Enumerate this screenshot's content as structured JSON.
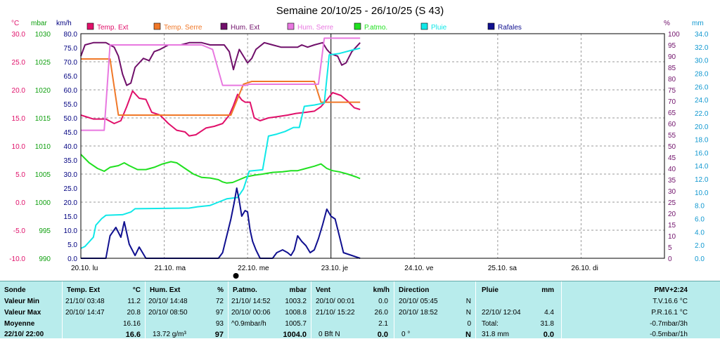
{
  "colors": {
    "temp_ext": "#e0106a",
    "temp_serre": "#f07828",
    "hum_ext": "#70106a",
    "hum_serre": "#e878e0",
    "patmo": "#20e020",
    "pluie": "#10e8e8",
    "rafales": "#101090",
    "unit_c": "#e0106a",
    "unit_mbar": "#10a010",
    "unit_kmh": "#000080",
    "unit_pct": "#70106a",
    "unit_mm": "#1098d0",
    "table_bg": "#b8ecec"
  },
  "chart_data": {
    "type": "line",
    "title": "Semaine 20/10/25 - 26/10/25 (S 43)",
    "axes": {
      "temp_c": {
        "unit": "°C",
        "range": [
          -10,
          30
        ],
        "ticks": [
          "30.0",
          "25.0",
          "20.0",
          "15.0",
          "10.0",
          "5.0",
          "0.0",
          "-5.0",
          "-10.0"
        ]
      },
      "pressure_mbar": {
        "unit": "mbar",
        "range": [
          990,
          1030
        ],
        "ticks": [
          "1030",
          "1025",
          "1020",
          "1015",
          "1010",
          "1005",
          "1000",
          "995",
          "990"
        ]
      },
      "wind_kmh": {
        "unit": "km/h",
        "range": [
          0,
          80
        ],
        "ticks": [
          "80.0",
          "75.0",
          "70.0",
          "65.0",
          "60.0",
          "55.0",
          "50.0",
          "45.0",
          "40.0",
          "35.0",
          "30.0",
          "25.0",
          "20.0",
          "15.0",
          "10.0",
          "5.0",
          "0.0"
        ]
      },
      "hum_pct": {
        "unit": "%",
        "range": [
          0,
          100
        ],
        "ticks": [
          "100",
          "95",
          "90",
          "85",
          "80",
          "75",
          "70",
          "65",
          "60",
          "55",
          "50",
          "45",
          "40",
          "35",
          "30",
          "25",
          "20",
          "15",
          "10",
          "5",
          "0"
        ]
      },
      "rain_mm": {
        "unit": "mm",
        "range": [
          0,
          34
        ],
        "ticks": [
          "34.0",
          "32.0",
          "30.0",
          "28.0",
          "26.0",
          "24.0",
          "22.0",
          "20.0",
          "18.0",
          "16.0",
          "14.0",
          "12.0",
          "10.0",
          "8.0",
          "6.0",
          "4.0",
          "2.0",
          "0.0"
        ]
      }
    },
    "x_range_days": [
      0,
      7
    ],
    "days": [
      "20.10.  lu",
      "21.10.  ma",
      "22.10.  me",
      "23.10.  je",
      "24.10.  ve",
      "25.10.  sa",
      "26.10.  di"
    ],
    "grid": true,
    "legend_position": "top",
    "series": [
      {
        "key": "temp_ext",
        "name": "Temp. Ext",
        "axis": "temp_c",
        "points": [
          [
            0,
            15.5
          ],
          [
            0.15,
            14.8
          ],
          [
            0.3,
            14.8
          ],
          [
            0.4,
            14.0
          ],
          [
            0.48,
            14.5
          ],
          [
            0.55,
            17.0
          ],
          [
            0.62,
            19.8
          ],
          [
            0.7,
            18.5
          ],
          [
            0.78,
            18.3
          ],
          [
            0.85,
            16.0
          ],
          [
            0.95,
            15.5
          ],
          [
            1.05,
            14.0
          ],
          [
            1.15,
            12.8
          ],
          [
            1.25,
            12.5
          ],
          [
            1.3,
            11.8
          ],
          [
            1.38,
            12.0
          ],
          [
            1.5,
            13.2
          ],
          [
            1.6,
            13.5
          ],
          [
            1.7,
            14.0
          ],
          [
            1.78,
            15.5
          ],
          [
            1.83,
            17.2
          ],
          [
            1.88,
            19.2
          ],
          [
            1.93,
            18.2
          ],
          [
            1.97,
            17.8
          ],
          [
            2.03,
            17.8
          ],
          [
            2.08,
            15.0
          ],
          [
            2.15,
            14.5
          ],
          [
            2.25,
            15.0
          ],
          [
            2.35,
            15.2
          ],
          [
            2.48,
            15.5
          ],
          [
            2.58,
            15.8
          ],
          [
            2.7,
            16.0
          ],
          [
            2.8,
            16.2
          ],
          [
            2.88,
            17.0
          ],
          [
            2.95,
            18.2
          ],
          [
            3.02,
            19.5
          ],
          [
            3.12,
            19.0
          ],
          [
            3.2,
            18.0
          ],
          [
            3.28,
            16.8
          ],
          [
            3.35,
            16.5
          ]
        ]
      },
      {
        "key": "temp_serre",
        "name": "Temp. Serre",
        "axis": "temp_c",
        "points": [
          [
            0,
            25.5
          ],
          [
            0.35,
            25.5
          ],
          [
            0.45,
            15.5
          ],
          [
            0.6,
            15.5
          ],
          [
            1.8,
            15.5
          ],
          [
            1.95,
            21.0
          ],
          [
            2.05,
            21.5
          ],
          [
            2.8,
            21.5
          ],
          [
            2.88,
            17.8
          ],
          [
            3.35,
            17.8
          ]
        ]
      },
      {
        "key": "hum_ext",
        "name": "Hum. Ext",
        "axis": "hum_pct",
        "points": [
          [
            0,
            90
          ],
          [
            0.05,
            95
          ],
          [
            0.15,
            96
          ],
          [
            0.3,
            96
          ],
          [
            0.4,
            94
          ],
          [
            0.45,
            90
          ],
          [
            0.5,
            82
          ],
          [
            0.55,
            77
          ],
          [
            0.6,
            78
          ],
          [
            0.65,
            85
          ],
          [
            0.7,
            87
          ],
          [
            0.75,
            89
          ],
          [
            0.82,
            88
          ],
          [
            0.88,
            92
          ],
          [
            0.95,
            93
          ],
          [
            1.05,
            95
          ],
          [
            1.2,
            95
          ],
          [
            1.3,
            96
          ],
          [
            1.45,
            96
          ],
          [
            1.55,
            95
          ],
          [
            1.65,
            95
          ],
          [
            1.72,
            95
          ],
          [
            1.78,
            92
          ],
          [
            1.83,
            84
          ],
          [
            1.86,
            88
          ],
          [
            1.9,
            93
          ],
          [
            1.95,
            90
          ],
          [
            2.0,
            87
          ],
          [
            2.05,
            89
          ],
          [
            2.1,
            93
          ],
          [
            2.2,
            96
          ],
          [
            2.3,
            95
          ],
          [
            2.4,
            94
          ],
          [
            2.5,
            94
          ],
          [
            2.6,
            94
          ],
          [
            2.65,
            95
          ],
          [
            2.72,
            94
          ],
          [
            2.8,
            95
          ],
          [
            2.9,
            96
          ],
          [
            2.95,
            93
          ],
          [
            3.0,
            91
          ],
          [
            3.08,
            90
          ],
          [
            3.13,
            86
          ],
          [
            3.18,
            87
          ],
          [
            3.25,
            92
          ],
          [
            3.3,
            94
          ],
          [
            3.35,
            96
          ]
        ]
      },
      {
        "key": "hum_serre",
        "name": "Hum. Serre",
        "axis": "hum_pct",
        "points": [
          [
            0,
            57
          ],
          [
            0.28,
            57
          ],
          [
            0.35,
            95
          ],
          [
            1.38,
            95
          ],
          [
            1.45,
            95
          ],
          [
            1.58,
            93
          ],
          [
            1.7,
            77
          ],
          [
            1.98,
            77
          ],
          [
            2.02,
            77.5
          ],
          [
            2.85,
            77.5
          ],
          [
            2.92,
            98
          ],
          [
            3.35,
            98
          ]
        ]
      },
      {
        "key": "patmo",
        "name": "P.atmo.",
        "axis": "pressure_mbar",
        "points": [
          [
            0,
            1008.5
          ],
          [
            0.1,
            1007.0
          ],
          [
            0.2,
            1006.0
          ],
          [
            0.28,
            1005.5
          ],
          [
            0.35,
            1006.2
          ],
          [
            0.45,
            1006.5
          ],
          [
            0.52,
            1007.0
          ],
          [
            0.58,
            1006.5
          ],
          [
            0.68,
            1005.8
          ],
          [
            0.78,
            1005.8
          ],
          [
            0.88,
            1006.2
          ],
          [
            0.98,
            1006.8
          ],
          [
            1.08,
            1007.2
          ],
          [
            1.15,
            1007.0
          ],
          [
            1.25,
            1006.0
          ],
          [
            1.35,
            1005.0
          ],
          [
            1.45,
            1004.4
          ],
          [
            1.55,
            1004.3
          ],
          [
            1.65,
            1004.0
          ],
          [
            1.7,
            1003.6
          ],
          [
            1.75,
            1003.4
          ],
          [
            1.82,
            1003.5
          ],
          [
            1.9,
            1004.0
          ],
          [
            1.98,
            1004.5
          ],
          [
            2.08,
            1004.8
          ],
          [
            2.18,
            1005.0
          ],
          [
            2.3,
            1005.3
          ],
          [
            2.42,
            1005.4
          ],
          [
            2.52,
            1005.6
          ],
          [
            2.6,
            1005.6
          ],
          [
            2.7,
            1006.0
          ],
          [
            2.8,
            1006.4
          ],
          [
            2.88,
            1006.8
          ],
          [
            2.95,
            1006.0
          ],
          [
            3.02,
            1005.6
          ],
          [
            3.1,
            1005.4
          ],
          [
            3.2,
            1005.0
          ],
          [
            3.3,
            1004.5
          ],
          [
            3.35,
            1004.2
          ]
        ]
      },
      {
        "key": "pluie",
        "name": "Pluie",
        "axis": "rain_mm",
        "points": [
          [
            0,
            1.5
          ],
          [
            0.05,
            1.8
          ],
          [
            0.1,
            2.5
          ],
          [
            0.15,
            3.2
          ],
          [
            0.18,
            5.0
          ],
          [
            0.25,
            6.0
          ],
          [
            0.3,
            6.5
          ],
          [
            0.5,
            6.6
          ],
          [
            0.6,
            7.0
          ],
          [
            0.65,
            7.5
          ],
          [
            1.3,
            7.6
          ],
          [
            1.4,
            7.8
          ],
          [
            1.55,
            8.0
          ],
          [
            1.65,
            8.5
          ],
          [
            1.75,
            9.0
          ],
          [
            1.88,
            9.2
          ],
          [
            1.95,
            10.5
          ],
          [
            2.02,
            13.2
          ],
          [
            2.18,
            13.4
          ],
          [
            2.25,
            18.5
          ],
          [
            2.35,
            18.8
          ],
          [
            2.45,
            19.2
          ],
          [
            2.55,
            19.8
          ],
          [
            2.62,
            19.8
          ],
          [
            2.68,
            23.0
          ],
          [
            2.8,
            23.2
          ],
          [
            2.92,
            23.5
          ],
          [
            2.98,
            30.8
          ],
          [
            3.1,
            31.0
          ],
          [
            3.25,
            31.5
          ],
          [
            3.35,
            31.8
          ]
        ]
      },
      {
        "key": "rafales",
        "name": "Rafales",
        "axis": "wind_kmh",
        "points": [
          [
            0,
            0
          ],
          [
            0.3,
            0
          ],
          [
            0.35,
            8.0
          ],
          [
            0.42,
            11.0
          ],
          [
            0.48,
            7.5
          ],
          [
            0.52,
            13.0
          ],
          [
            0.58,
            5.0
          ],
          [
            0.65,
            1.0
          ],
          [
            0.7,
            4.0
          ],
          [
            0.78,
            0
          ],
          [
            1.4,
            0
          ],
          [
            1.5,
            0
          ],
          [
            1.65,
            0
          ],
          [
            1.7,
            2.0
          ],
          [
            1.75,
            8.0
          ],
          [
            1.8,
            14.0
          ],
          [
            1.84,
            20.0
          ],
          [
            1.87,
            25.0
          ],
          [
            1.9,
            20.5
          ],
          [
            1.93,
            15.0
          ],
          [
            1.97,
            17.0
          ],
          [
            2.0,
            16.5
          ],
          [
            2.03,
            10.0
          ],
          [
            2.06,
            6.0
          ],
          [
            2.1,
            3.0
          ],
          [
            2.15,
            0
          ],
          [
            2.3,
            0
          ],
          [
            2.35,
            2.0
          ],
          [
            2.42,
            3.0
          ],
          [
            2.48,
            2.0
          ],
          [
            2.52,
            1.0
          ],
          [
            2.56,
            3.0
          ],
          [
            2.6,
            8.0
          ],
          [
            2.65,
            6.0
          ],
          [
            2.7,
            4.5
          ],
          [
            2.75,
            2.0
          ],
          [
            2.8,
            3.0
          ],
          [
            2.85,
            7.0
          ],
          [
            2.9,
            12.0
          ],
          [
            2.95,
            17.5
          ],
          [
            3.0,
            15.0
          ],
          [
            3.05,
            14.0
          ],
          [
            3.1,
            8.0
          ],
          [
            3.15,
            2.0
          ],
          [
            3.25,
            1.0
          ],
          [
            3.35,
            0
          ]
        ]
      }
    ],
    "now_marker_day": 1.86
  },
  "table": {
    "col1": {
      "header": "Sonde",
      "rows": [
        "Valeur Min",
        "Valeur Max",
        "Moyenne",
        "22/10/ 22:00"
      ]
    },
    "temp": {
      "header": "Temp. Ext",
      "unit": "°C",
      "rows": [
        [
          "21/10/ 03:48",
          "11.2"
        ],
        [
          "20/10/ 14:47",
          "20.8"
        ],
        [
          "",
          "16.16"
        ],
        [
          "",
          "16.6"
        ]
      ]
    },
    "hum": {
      "header": "Hum. Ext",
      "unit": "%",
      "rows": [
        [
          "20/10/ 14:48",
          "72"
        ],
        [
          "20/10/ 08:50",
          "97"
        ],
        [
          "",
          "93"
        ],
        [
          "13.72 g/m³",
          "97"
        ]
      ]
    },
    "patmo": {
      "header": "P.atmo.",
      "unit": "mbar",
      "rows": [
        [
          "21/10/ 14:52",
          "1003.2"
        ],
        [
          "20/10/ 00:06",
          "1008.8"
        ],
        [
          "^0.9mbar/h",
          "1005.7"
        ],
        [
          "",
          "1004.0"
        ]
      ]
    },
    "vent": {
      "header": "Vent",
      "unit": "km/h",
      "rows": [
        [
          "20/10/ 00:01",
          "0.0"
        ],
        [
          "21/10/ 15:22",
          "26.0"
        ],
        [
          "",
          "2.1"
        ],
        [
          "0 Bft N",
          "0.0"
        ]
      ]
    },
    "dir": {
      "header": "Direction",
      "rows": [
        [
          "20/10/ 05:45",
          "N"
        ],
        [
          "20/10/ 18:52",
          "N"
        ],
        [
          "",
          "0"
        ],
        [
          "0 °",
          "N"
        ]
      ]
    },
    "pluie": {
      "header": "Pluie",
      "unit": "mm",
      "rows": [
        [
          "",
          ""
        ],
        [
          "22/10/ 12:04",
          "4.4"
        ],
        [
          "Total:",
          "31.8"
        ],
        [
          "31.8 mm",
          "0.0"
        ]
      ]
    },
    "pmv": {
      "header": "PMV+2:24",
      "rows": [
        "T.V.16.6 °C",
        "P.R.16.1 °C",
        "-0.7mbar/3h",
        "-0.5mbar/1h"
      ]
    }
  }
}
